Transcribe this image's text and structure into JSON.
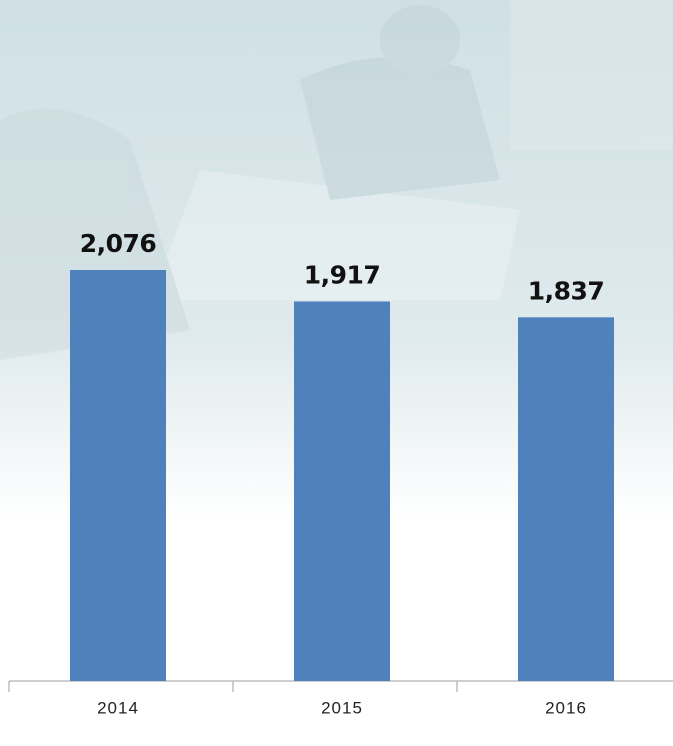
{
  "chart_data": {
    "type": "bar",
    "categories": [
      "2014",
      "2015",
      "2016"
    ],
    "values": [
      2076,
      1917,
      1837
    ],
    "value_labels": [
      "2,076",
      "1,917",
      "1,837"
    ],
    "color": "#4f81bd"
  }
}
